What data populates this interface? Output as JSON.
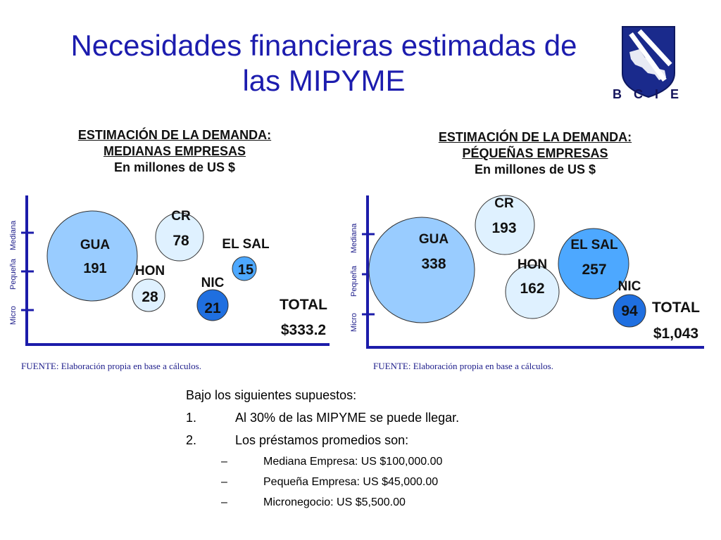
{
  "slide": {
    "title_line1": "Necesidades financieras estimadas de",
    "title_line2": "las MIPYME",
    "logo_text": "B C I E"
  },
  "chart_data": [
    {
      "type": "scatter",
      "title_line1": "ESTIMACIÓN DE LA DEMANDA:",
      "title_line2": "MEDIANAS EMPRESAS",
      "subtitle": "En millones de US $",
      "ylabel": [
        "Micro",
        "Pequeña",
        "Mediana"
      ],
      "source": "FUENTE: Elaboración propia en base a cálculos.",
      "total_label": "TOTAL",
      "total_value": "$333.2",
      "bubbles": [
        {
          "name": "GUA",
          "value": 191,
          "color": "#99ccff"
        },
        {
          "name": "CR",
          "value": 78,
          "color": "#dff1ff"
        },
        {
          "name": "HON",
          "value": 28,
          "color": "#dff1ff"
        },
        {
          "name": "EL SAL",
          "value": 15,
          "color": "#4da8ff"
        },
        {
          "name": "NIC",
          "value": 21,
          "color": "#1f6fe0"
        }
      ]
    },
    {
      "type": "scatter",
      "title_line1": "ESTIMACIÓN DE LA DEMANDA:",
      "title_line2": "PÉQUEÑAS EMPRESAS",
      "subtitle": "En millones de US $",
      "ylabel": [
        "Micro",
        "Pequeña",
        "Mediana"
      ],
      "source": "FUENTE: Elaboración propia en base a cálculos.",
      "total_label": "TOTAL",
      "total_value": "$1,043",
      "bubbles": [
        {
          "name": "GUA",
          "value": 338,
          "color": "#99ccff"
        },
        {
          "name": "CR",
          "value": 193,
          "color": "#dff1ff"
        },
        {
          "name": "HON",
          "value": 162,
          "color": "#dff1ff"
        },
        {
          "name": "EL SAL",
          "value": 257,
          "color": "#4da8ff"
        },
        {
          "name": "NIC",
          "value": 94,
          "color": "#1f6fe0"
        }
      ]
    }
  ],
  "assumptions": {
    "intro": "Bajo los siguientes supuestos:",
    "items": [
      {
        "num": "1.",
        "text": "Al 30% de las MIPYME se puede llegar."
      },
      {
        "num": "2.",
        "text": "Los préstamos promedios son:"
      }
    ],
    "subitems": [
      {
        "dash": "–",
        "text": "Mediana Empresa: US $100,000.00"
      },
      {
        "dash": "–",
        "text": "Pequeña Empresa: US $45,000.00"
      },
      {
        "dash": "–",
        "text": "Micronegocio: US $5,500.00"
      }
    ]
  }
}
